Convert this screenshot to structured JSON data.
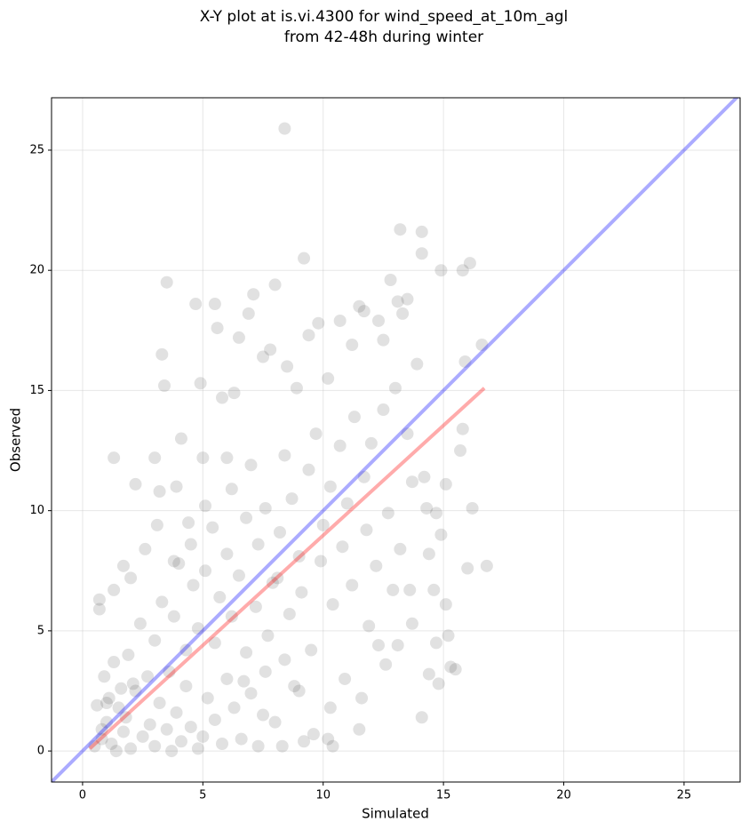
{
  "chart_data": {
    "type": "scatter",
    "title": [
      "X-Y plot at is.vi.4300 for wind_speed_at_10m_agl",
      "from 42-48h during winter"
    ],
    "xlabel": "Simulated",
    "ylabel": "Observed",
    "xlim": [
      -1.29,
      27.33
    ],
    "ylim": [
      -1.29,
      27.18
    ],
    "xticks": [
      0,
      5,
      10,
      15,
      20,
      25
    ],
    "yticks": [
      0,
      5,
      10,
      15,
      20,
      25
    ],
    "grid": true,
    "points": {
      "color": "#333333",
      "alpha": 0.15,
      "x": [
        0.5,
        0.8,
        1.0,
        1.2,
        1.5,
        1.7,
        2.0,
        2.2,
        0.6,
        0.9,
        1.1,
        1.4,
        1.8,
        2.5,
        2.8,
        3.0,
        3.2,
        3.5,
        3.7,
        3.9,
        4.1,
        4.3,
        4.5,
        4.8,
        5.0,
        5.2,
        5.5,
        5.8,
        6.0,
        6.3,
        6.6,
        7.0,
        7.3,
        7.6,
        8.0,
        8.3,
        8.8,
        9.2,
        10.2,
        10.4,
        10.3,
        9.6,
        0.7,
        0.7,
        1.3,
        1.7,
        2.2,
        1.3,
        3.0,
        3.2,
        3.1,
        3.4,
        3.3,
        3.5,
        3.9,
        4.1,
        4.5,
        4.7,
        4.9,
        5.0,
        5.5,
        5.6,
        5.8,
        6.0,
        6.3,
        6.5,
        6.9,
        7.1,
        7.5,
        7.8,
        8.0,
        8.4,
        8.5,
        8.9,
        9.2,
        9.4,
        9.8,
        10.2,
        10.7,
        11.2,
        11.5,
        11.7,
        12.3,
        12.5,
        12.8,
        13.1,
        13.2,
        13.3,
        13.5,
        13.9,
        14.1,
        14.1,
        14.9,
        15.8,
        16.1,
        15.9,
        16.6,
        15.8,
        15.7,
        15.1,
        14.7,
        14.9,
        15.1,
        14.6,
        14.7,
        15.2,
        15.3,
        15.5,
        14.8,
        14.4,
        14.1,
        11.5,
        11.6,
        12.3,
        13.1,
        12.9,
        13.6,
        16.0,
        16.8,
        16.2,
        14.2,
        14.3,
        13.5,
        13.0,
        12.5,
        12.0,
        11.7,
        11.3,
        11.0,
        10.7,
        10.3,
        10.0,
        9.7,
        9.4,
        9.0,
        8.7,
        8.4,
        8.2,
        7.9,
        7.6,
        7.3,
        7.0,
        6.8,
        6.5,
        6.2,
        6.0,
        5.7,
        5.4,
        5.1,
        4.8,
        4.6,
        4.3,
        4.0,
        3.8,
        3.6,
        3.3,
        3.0,
        2.7,
        2.4,
        2.1,
        1.9,
        1.6,
        1.3,
        1.0,
        0.8,
        5.5,
        6.2,
        6.8,
        7.2,
        7.7,
        8.1,
        8.6,
        9.1,
        9.5,
        9.9,
        10.4,
        10.8,
        11.2,
        11.8,
        12.2,
        12.7,
        13.2,
        13.7,
        14.4,
        10.9,
        11.9,
        12.6,
        13.7,
        9.0,
        8.4,
        7.5,
        6.7,
        2.6,
        2.0,
        3.8,
        5.1,
        4.4
      ],
      "y": [
        0.2,
        0.5,
        1.2,
        0.3,
        1.8,
        0.8,
        0.1,
        2.5,
        1.9,
        3.1,
        2.2,
        0.0,
        1.4,
        0.6,
        1.1,
        0.2,
        2.0,
        0.9,
        0.0,
        1.6,
        0.4,
        2.7,
        1.0,
        0.1,
        0.6,
        2.2,
        1.3,
        0.3,
        3.0,
        1.8,
        0.5,
        2.4,
        0.2,
        3.3,
        1.2,
        0.2,
        2.7,
        0.4,
        0.5,
        0.2,
        1.8,
        0.7,
        6.3,
        5.9,
        6.7,
        7.7,
        11.1,
        12.2,
        12.2,
        10.8,
        9.4,
        15.2,
        16.5,
        19.5,
        11.0,
        13.0,
        8.6,
        18.6,
        15.3,
        12.2,
        18.6,
        17.6,
        14.7,
        12.2,
        14.9,
        17.2,
        18.2,
        19.0,
        16.4,
        16.7,
        19.4,
        25.9,
        16.0,
        15.1,
        20.5,
        17.3,
        17.8,
        15.5,
        17.9,
        16.9,
        18.5,
        18.3,
        17.9,
        17.1,
        19.6,
        18.7,
        21.7,
        18.2,
        18.8,
        16.1,
        20.7,
        21.6,
        20.0,
        20.0,
        20.3,
        16.2,
        16.9,
        13.4,
        12.5,
        11.1,
        9.9,
        9.0,
        6.1,
        6.7,
        4.5,
        4.8,
        3.5,
        3.4,
        2.8,
        3.2,
        1.4,
        0.9,
        2.2,
        4.4,
        4.4,
        6.7,
        6.7,
        7.6,
        7.7,
        10.1,
        11.4,
        10.1,
        13.2,
        15.1,
        14.2,
        12.8,
        11.4,
        13.9,
        10.3,
        12.7,
        11.0,
        9.4,
        13.2,
        11.7,
        8.1,
        10.5,
        12.3,
        9.1,
        7.0,
        10.1,
        8.6,
        11.9,
        9.7,
        7.3,
        10.9,
        8.2,
        6.4,
        9.3,
        7.5,
        5.1,
        6.9,
        4.2,
        7.8,
        5.6,
        3.3,
        6.2,
        4.6,
        3.1,
        5.3,
        2.8,
        4.0,
        2.6,
        3.7,
        2.0,
        0.9,
        4.5,
        5.6,
        4.1,
        6.0,
        4.8,
        7.2,
        5.7,
        6.6,
        4.2,
        7.9,
        6.1,
        8.5,
        6.9,
        9.2,
        7.7,
        9.9,
        8.4,
        11.2,
        8.2,
        3.0,
        5.2,
        3.6,
        5.3,
        2.5,
        3.8,
        1.5,
        2.9,
        8.4,
        7.2,
        7.9,
        10.2,
        9.5
      ]
    },
    "lines": [
      {
        "color": "#0000ff",
        "alpha": 0.33,
        "x": [
          -1.29,
          27.33
        ],
        "y": [
          -1.29,
          27.33
        ]
      },
      {
        "color": "#ff0000",
        "alpha": 0.33,
        "x": [
          0.3,
          16.7
        ],
        "y": [
          0.1,
          15.1
        ]
      }
    ]
  }
}
